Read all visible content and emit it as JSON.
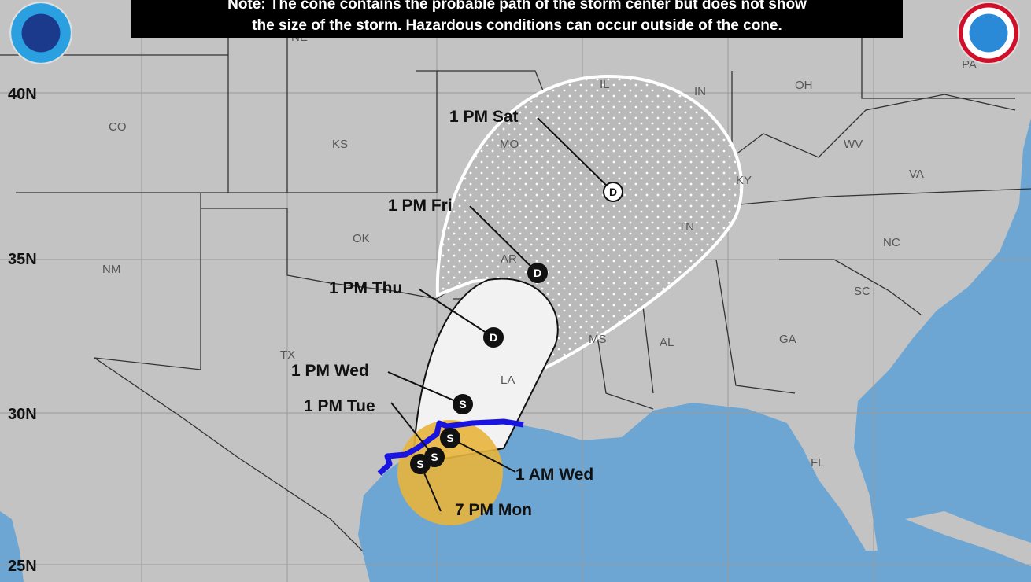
{
  "note": {
    "line1": "Note: The cone contains the probable path of the storm center but does not show",
    "line2": "the size of the storm. Hazardous conditions can occur outside of the cone."
  },
  "logos": {
    "left": "NOAA",
    "right": "NATIONAL WEATHER SERVICE"
  },
  "latitude_labels": [
    "40N",
    "35N",
    "30N",
    "25N"
  ],
  "states": [
    "NE",
    "CO",
    "KS",
    "MO",
    "IL",
    "IN",
    "OH",
    "PA",
    "WV",
    "VA",
    "KY",
    "TN",
    "NC",
    "AR",
    "OK",
    "NM",
    "TX",
    "LA",
    "MS",
    "AL",
    "GA",
    "SC",
    "FL"
  ],
  "forecast_points": [
    {
      "label": "7 PM Mon",
      "type": "S"
    },
    {
      "label": "1 AM Wed",
      "type": "S"
    },
    {
      "label": "1 PM Tue",
      "type": "S"
    },
    {
      "label": "1 PM Wed",
      "type": "S"
    },
    {
      "label": "1 PM Thu",
      "type": "D"
    },
    {
      "label": "1 PM Fri",
      "type": "D"
    },
    {
      "label": "1 PM Sat",
      "type": "D"
    }
  ],
  "colors": {
    "land": "#c3c3c3",
    "water": "#6da6d3",
    "warning": "#1a14e0",
    "watch_area": "#e8b43c",
    "cone": "#f2f2f2"
  }
}
